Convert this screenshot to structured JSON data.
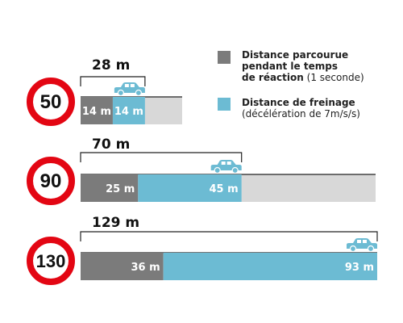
{
  "chart_data": {
    "type": "bar",
    "colors": {
      "reaction": "#7b7b7b",
      "braking": "#6cbbd3",
      "remaining": "#d8d8d8",
      "sign_ring": "#e30613",
      "car": "#6cbbd3"
    },
    "max_distance": 129,
    "legend": [
      {
        "series": "reaction",
        "title": "Distance parcourue pendant le temps de réaction",
        "title_line1": "Distance parcourue",
        "title_line2": "pendant le temps",
        "title_line3": "de réaction",
        "detail": "(1 seconde)"
      },
      {
        "series": "braking",
        "title": "Distance de freinage",
        "title_line1": "Distance de freinage",
        "detail": "(décélération de 7m/s/s)"
      }
    ],
    "rows": [
      {
        "speed": "50",
        "total_label": "28 m",
        "total": 28,
        "reaction": 14,
        "reaction_label": "14 m",
        "braking": 14,
        "braking_label": "14 m"
      },
      {
        "speed": "90",
        "total_label": "70 m",
        "total": 70,
        "reaction": 25,
        "reaction_label": "25 m",
        "braking": 45,
        "braking_label": "45 m"
      },
      {
        "speed": "130",
        "total_label": "129 m",
        "total": 129,
        "reaction": 36,
        "reaction_label": "36 m",
        "braking": 93,
        "braking_label": "93 m"
      }
    ]
  }
}
